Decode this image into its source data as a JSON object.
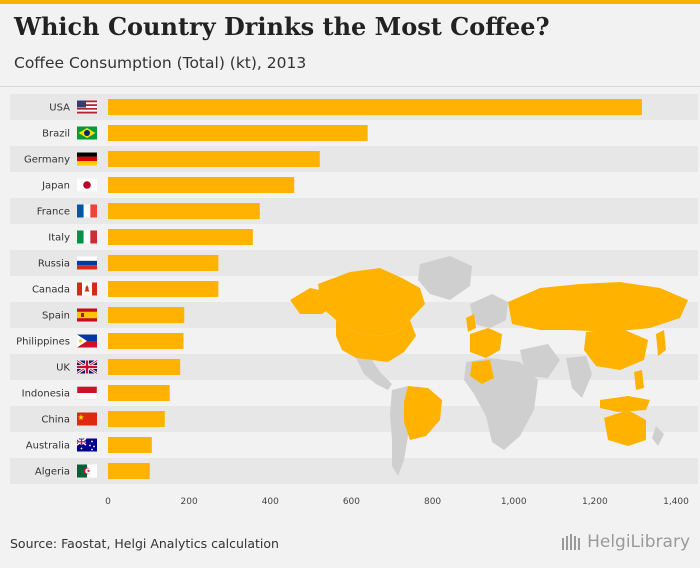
{
  "header": {
    "title": "Which Country Drinks the Most Coffee?",
    "subtitle": "Coffee Consumption (Total) (kt), 2013"
  },
  "footer": {
    "source": "Source: Faostat, Helgi Analytics calculation",
    "logo_text": "HelgiLibrary"
  },
  "colors": {
    "accent": "#f7b100",
    "bar": "#ffb300",
    "row_band": "#e7e7e7",
    "map_highlight": "#ffb300",
    "map_base": "#cfcfcf"
  },
  "chart_data": {
    "type": "bar",
    "orientation": "horizontal",
    "title": "Which Country Drinks the Most Coffee?",
    "subtitle": "Coffee Consumption (Total) (kt), 2013",
    "categories": [
      "USA",
      "Brazil",
      "Germany",
      "Japan",
      "France",
      "Italy",
      "Russia",
      "Canada",
      "Spain",
      "Philippines",
      "UK",
      "Indonesia",
      "China",
      "Australia",
      "Algeria"
    ],
    "flags": [
      "us-flag-icon",
      "br-flag-icon",
      "de-flag-icon",
      "jp-flag-icon",
      "fr-flag-icon",
      "it-flag-icon",
      "ru-flag-icon",
      "ca-flag-icon",
      "es-flag-icon",
      "ph-flag-icon",
      "gb-flag-icon",
      "id-flag-icon",
      "cn-flag-icon",
      "au-flag-icon",
      "dz-flag-icon"
    ],
    "values": [
      1316,
      640,
      522,
      459,
      374,
      357,
      272,
      272,
      188,
      186,
      178,
      152,
      140,
      108,
      103
    ],
    "xlim": [
      0,
      1400
    ],
    "xticks": [
      0,
      200,
      400,
      600,
      800,
      1000,
      1200,
      1400
    ],
    "xtick_labels": [
      "0",
      "200",
      "400",
      "600",
      "800",
      "1,000",
      "1,200",
      "1,400"
    ],
    "grid": false,
    "legend": "none"
  }
}
